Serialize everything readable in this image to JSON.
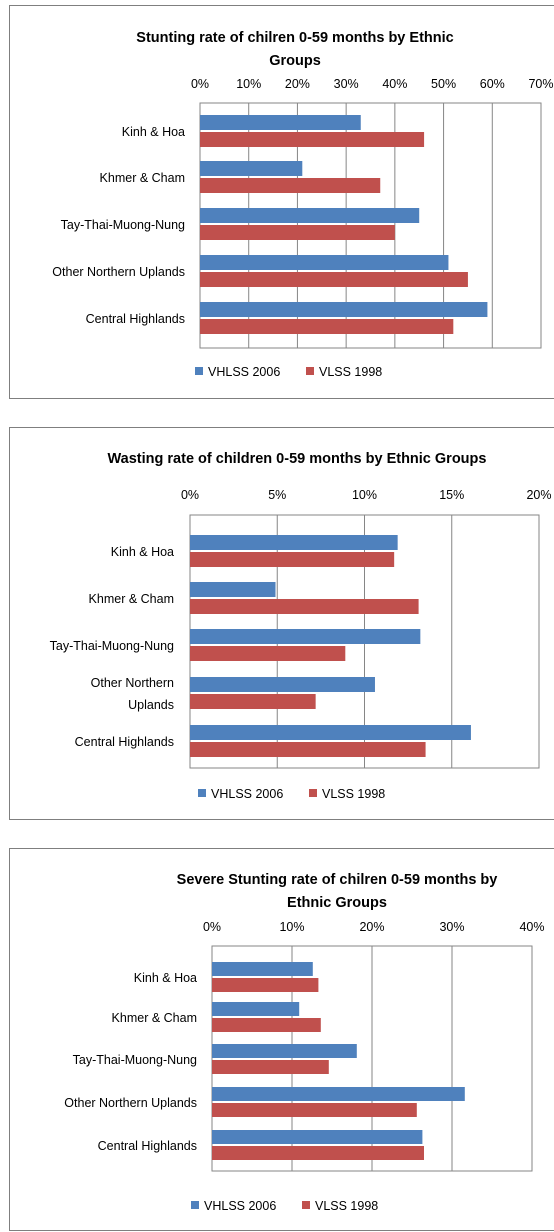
{
  "colors": {
    "VHLSS 2006": "#4f81bd",
    "VLSS 1998": "#c0504d"
  },
  "chart_data": [
    {
      "type": "bar",
      "orientation": "horizontal",
      "title": "Stunting rate of chilren 0-59 months by Ethnic Groups",
      "title_lines": [
        "Stunting rate of chilren 0-59 months by Ethnic",
        "Groups"
      ],
      "categories": [
        "Kinh & Hoa",
        "Khmer & Cham",
        "Tay-Thai-Muong-Nung",
        "Other Northern Uplands",
        "Central Highlands"
      ],
      "category_lines": [
        [
          "Kinh & Hoa"
        ],
        [
          "Khmer & Cham"
        ],
        [
          "Tay-Thai-Muong-Nung"
        ],
        [
          "Other Northern Uplands"
        ],
        [
          "Central Highlands"
        ]
      ],
      "series": [
        {
          "name": "VHLSS 2006",
          "values": [
            33,
            21,
            45,
            51,
            59
          ]
        },
        {
          "name": "VLSS 1998",
          "values": [
            46,
            37,
            40,
            55,
            52
          ]
        }
      ],
      "xlim": [
        0,
        70
      ],
      "xticks": [
        0,
        10,
        20,
        30,
        40,
        50,
        60,
        70
      ],
      "tick_labels": [
        "0%",
        "10%",
        "20%",
        "30%",
        "40%",
        "50%",
        "60%",
        "70%"
      ],
      "axis_position": "top",
      "grid": true,
      "legend": {
        "position": "bottom",
        "entries": [
          "VHLSS 2006",
          "VLSS 1998"
        ]
      }
    },
    {
      "type": "bar",
      "orientation": "horizontal",
      "title": "Wasting rate of children 0-59 months by Ethnic Groups",
      "title_lines": [
        "Wasting rate of children 0-59 months by Ethnic Groups"
      ],
      "categories": [
        "Kinh & Hoa",
        "Khmer & Cham",
        "Tay-Thai-Muong-Nung",
        "Other Northern Uplands",
        "Central Highlands"
      ],
      "category_lines": [
        [
          "Kinh & Hoa"
        ],
        [
          "Khmer & Cham"
        ],
        [
          "Tay-Thai-Muong-Nung"
        ],
        [
          "Other Northern",
          "Uplands"
        ],
        [
          "Central Highlands"
        ]
      ],
      "series": [
        {
          "name": "VHLSS 2006",
          "values": [
            11.9,
            4.9,
            13.2,
            10.6,
            16.1
          ]
        },
        {
          "name": "VLSS 1998",
          "values": [
            11.7,
            13.1,
            8.9,
            7.2,
            13.5
          ]
        }
      ],
      "xlim": [
        0,
        20
      ],
      "xticks": [
        0,
        5,
        10,
        15,
        20
      ],
      "tick_labels": [
        "0%",
        "5%",
        "10%",
        "15%",
        "20%"
      ],
      "axis_position": "top",
      "grid": true,
      "legend": {
        "position": "bottom",
        "entries": [
          "VHLSS 2006",
          "VLSS 1998"
        ]
      }
    },
    {
      "type": "bar",
      "orientation": "horizontal",
      "title": "Severe Stunting rate of chilren 0-59 months by Ethnic Groups",
      "title_lines": [
        "Severe Stunting rate  of chilren 0-59 months by",
        "Ethnic Groups"
      ],
      "categories": [
        "Kinh & Hoa",
        "Khmer & Cham",
        "Tay-Thai-Muong-Nung",
        "Other Northern Uplands",
        "Central Highlands"
      ],
      "category_lines": [
        [
          "Kinh & Hoa"
        ],
        [
          "Khmer & Cham"
        ],
        [
          "Tay-Thai-Muong-Nung"
        ],
        [
          "Other Northern Uplands"
        ],
        [
          "Central Highlands"
        ]
      ],
      "series": [
        {
          "name": "VHLSS 2006",
          "values": [
            12.6,
            10.9,
            18.1,
            31.6,
            26.3
          ]
        },
        {
          "name": "VLSS 1998",
          "values": [
            13.3,
            13.6,
            14.6,
            25.6,
            26.5
          ]
        }
      ],
      "xlim": [
        0,
        40
      ],
      "xticks": [
        0,
        10,
        20,
        30,
        40
      ],
      "tick_labels": [
        "0%",
        "10%",
        "20%",
        "30%",
        "40%"
      ],
      "axis_position": "top",
      "grid": true,
      "legend": {
        "position": "bottom",
        "entries": [
          "VHLSS 2006",
          "VLSS 1998"
        ]
      }
    }
  ]
}
